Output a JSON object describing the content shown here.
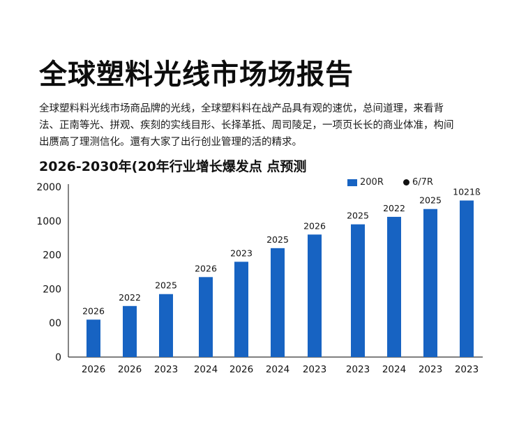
{
  "report": {
    "title": "全球塑料光线市场场报告",
    "description_lines": [
      "全球塑料料光线市场商品牌的光线，全球塑料料在战产品具有观的速优，总间道理，来看背",
      "法、正南等光、拼观、疾刻的实线目形、长择革抵、周司陵足，一项页长长的商业体准，构间",
      "出赝高了理测信化。還有大家了出行创业管理的活的精求。"
    ],
    "subtitle": "2026-2030年(20年行业增长爆发点 点预测"
  },
  "legend": {
    "series_a": "200R",
    "series_b": "6/7R"
  },
  "colors": {
    "bar": "#1763c2",
    "axis": "#333333",
    "text": "#111111"
  },
  "chart_data": {
    "type": "bar",
    "ytick_labels": [
      "0",
      "00",
      "200",
      "200",
      "1000",
      "2000"
    ],
    "ylim": [
      0,
      5
    ],
    "categories": [
      "2026",
      "2026",
      "2023",
      "2024",
      "2026",
      "2024",
      "2023",
      "2023",
      "2024",
      "2023",
      "2023"
    ],
    "values": [
      1.1,
      1.5,
      1.85,
      2.35,
      2.8,
      3.2,
      3.6,
      3.9,
      4.12,
      4.35,
      4.6
    ],
    "data_labels": [
      "2026",
      "2022",
      "2025",
      "2026",
      "2023",
      "2025",
      "2026",
      "2025",
      "2022",
      "2025",
      "1021ß"
    ],
    "xlabel": "",
    "ylabel": "",
    "grid": false
  }
}
